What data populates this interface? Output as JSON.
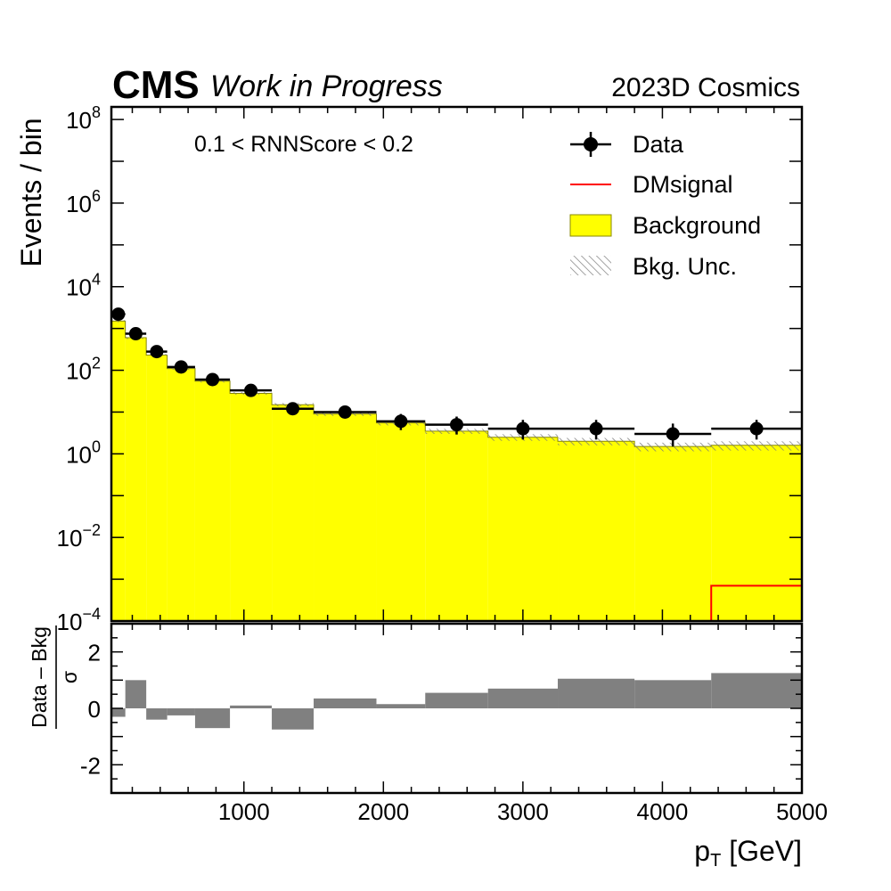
{
  "header": {
    "experiment": "CMS",
    "status": "Work in Progress",
    "run_label": "2023D Cosmics"
  },
  "annotation": "0.1 < RNNScore < 0.2",
  "colors": {
    "background_fill": "#ffff00",
    "background_edge": "#888800",
    "signal": "#ff0000",
    "data": "#000000",
    "pull": "#808080",
    "unc_hatch": "#777777"
  },
  "legend": [
    {
      "label": "Data",
      "kind": "data"
    },
    {
      "label": "DMsignal",
      "kind": "signal"
    },
    {
      "label": "Background",
      "kind": "background"
    },
    {
      "label": "Bkg. Unc.",
      "kind": "uncertainty"
    }
  ],
  "chart_data": {
    "type": "histogram",
    "xlabel_main": "p",
    "xlabel_sub": "T",
    "xlabel_unit": " [GeV]",
    "ylabel": "Events / bin",
    "ratio_ylabel_num": "Data – Bkg",
    "ratio_ylabel_den": "σ",
    "xlim": [
      50,
      5000
    ],
    "ylim": [
      0.0001,
      200000000
    ],
    "ylog": true,
    "ratio_ylim": [
      -3,
      3
    ],
    "x_ticks": [
      1000,
      2000,
      3000,
      4000,
      5000
    ],
    "x_tick_labels": [
      "1000",
      "2000",
      "3000",
      "4000",
      "5000"
    ],
    "y_ticks": [
      {
        "base": "10",
        "exp": "8",
        "value": 100000000
      },
      {
        "base": "10",
        "exp": "6",
        "value": 1000000
      },
      {
        "base": "10",
        "exp": "4",
        "value": 10000
      },
      {
        "base": "10",
        "exp": "2",
        "value": 100
      },
      {
        "base": "10",
        "exp": "0",
        "value": 1
      },
      {
        "base": "10",
        "exp": "−2",
        "value": 0.01
      },
      {
        "base": "10",
        "exp": "−4",
        "value": 0.0001
      }
    ],
    "ratio_y_ticks": [
      {
        "label": "2",
        "value": 2
      },
      {
        "label": "0",
        "value": 0
      },
      {
        "label": "-2",
        "value": -2
      }
    ],
    "bin_edges": [
      50,
      150,
      300,
      450,
      650,
      900,
      1200,
      1500,
      1950,
      2300,
      2750,
      3250,
      3800,
      4350,
      5000
    ],
    "background": [
      1500,
      600,
      230,
      110,
      55,
      28,
      15,
      9,
      5.5,
      3.5,
      2.5,
      2.0,
      1.5,
      1.6
    ],
    "background_unc": [
      90,
      40,
      16,
      8,
      4,
      2,
      1.4,
      0.9,
      0.7,
      0.5,
      0.45,
      0.4,
      0.35,
      0.4
    ],
    "signal": [
      null,
      null,
      null,
      null,
      null,
      null,
      null,
      null,
      null,
      null,
      null,
      null,
      null,
      0.0007
    ],
    "data": [
      {
        "x": 100,
        "y": 2200,
        "xerr": [
          50,
          150
        ],
        "yerr": [
          2150,
          2250
        ]
      },
      {
        "x": 225,
        "y": 750,
        "xerr": [
          150,
          300
        ],
        "yerr": [
          720,
          780
        ]
      },
      {
        "x": 375,
        "y": 280,
        "xerr": [
          300,
          450
        ],
        "yerr": [
          265,
          297
        ]
      },
      {
        "x": 550,
        "y": 120,
        "xerr": [
          450,
          650
        ],
        "yerr": [
          110,
          131
        ]
      },
      {
        "x": 775,
        "y": 60,
        "xerr": [
          650,
          900
        ],
        "yerr": [
          53,
          68
        ]
      },
      {
        "x": 1050,
        "y": 33,
        "xerr": [
          900,
          1200
        ],
        "yerr": [
          28,
          39
        ]
      },
      {
        "x": 1350,
        "y": 12,
        "xerr": [
          1200,
          1500
        ],
        "yerr": [
          9,
          15.5
        ]
      },
      {
        "x": 1725,
        "y": 10,
        "xerr": [
          1500,
          1950
        ],
        "yerr": [
          7.3,
          13.4
        ]
      },
      {
        "x": 2125,
        "y": 6,
        "xerr": [
          1950,
          2300
        ],
        "yerr": [
          3.7,
          9
        ]
      },
      {
        "x": 2525,
        "y": 5,
        "xerr": [
          2300,
          2750
        ],
        "yerr": [
          2.9,
          7.8
        ]
      },
      {
        "x": 3000,
        "y": 4,
        "xerr": [
          2750,
          3250
        ],
        "yerr": [
          2.2,
          6.5
        ]
      },
      {
        "x": 3525,
        "y": 4,
        "xerr": [
          3250,
          3800
        ],
        "yerr": [
          2.2,
          6.5
        ]
      },
      {
        "x": 4075,
        "y": 3,
        "xerr": [
          3800,
          4350
        ],
        "yerr": [
          1.5,
          5.3
        ]
      },
      {
        "x": 4675,
        "y": 4,
        "xerr": [
          4350,
          5000
        ],
        "yerr": [
          2.2,
          6.5
        ]
      }
    ],
    "pull": [
      -0.3,
      1.0,
      -0.4,
      -0.25,
      -0.7,
      0.1,
      -0.75,
      0.35,
      0.15,
      0.55,
      0.7,
      1.05,
      1.0,
      1.25
    ]
  }
}
